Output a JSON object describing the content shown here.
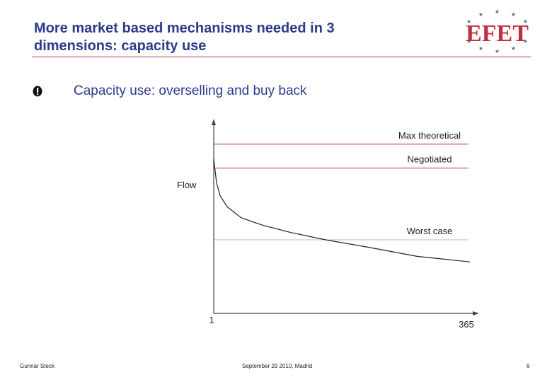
{
  "slide": {
    "title_line1": "More market based mechanisms needed in 3",
    "title_line2": "dimensions: capacity use",
    "logo_text": "EFET",
    "bullet_text": "Capacity use:  overselling and buy back"
  },
  "chart_data": {
    "type": "line",
    "title": "",
    "ylabel": "Flow",
    "xlabel": "",
    "x_ticks": [
      "1",
      "365"
    ],
    "reference_lines": [
      {
        "label": "Max theoretical",
        "level": 0.92,
        "color": "#c0303a"
      },
      {
        "label": "Negotiated",
        "level": 0.79,
        "color": "#c0303a"
      },
      {
        "label": "Worst case",
        "level": 0.4,
        "color": "#e7a9ae"
      }
    ],
    "series": [
      {
        "x": [
          1,
          5,
          10,
          20,
          40,
          70,
          110,
          160,
          220,
          290,
          365
        ],
        "y": [
          0.84,
          0.71,
          0.64,
          0.58,
          0.52,
          0.48,
          0.44,
          0.4,
          0.36,
          0.31,
          0.28
        ],
        "color": "#222222"
      }
    ],
    "grid": false,
    "legend": "none"
  },
  "footer": {
    "author": "Gunnar Steck",
    "date_place": "September 29 2010, Madrid",
    "page_number": "6"
  },
  "colors": {
    "title": "#2b3a8c",
    "rule": "#a63a4a",
    "logo_text": "#c0303a",
    "logo_stars": "#4a6fb5"
  }
}
